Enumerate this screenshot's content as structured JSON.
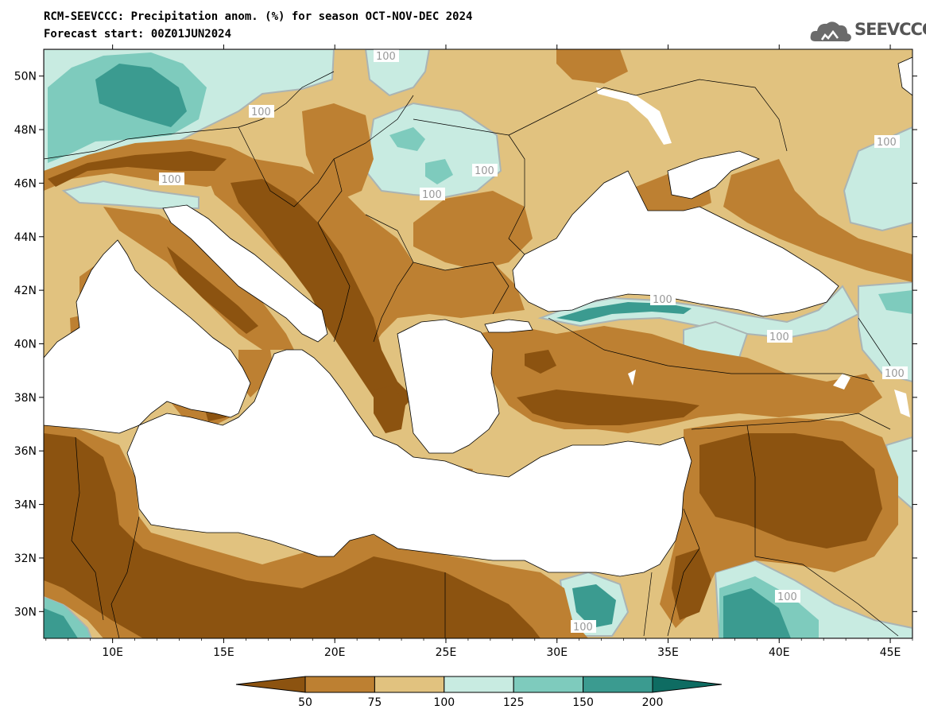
{
  "title": {
    "line1": "RCM-SEEVCCC: Precipitation anom. (%) for season OCT-NOV-DEC 2024",
    "line2": "Forecast start: 00Z01JUN2024"
  },
  "logo": {
    "text": "SEEVCCC",
    "icon": "cloud-icon"
  },
  "map": {
    "lat_labels": [
      "50N",
      "48N",
      "46N",
      "44N",
      "42N",
      "40N",
      "38N",
      "36N",
      "34N",
      "32N",
      "30N"
    ],
    "lon_labels": [
      "10E",
      "15E",
      "20E",
      "25E",
      "30E",
      "35E",
      "40E",
      "45E"
    ],
    "contour_label": "100",
    "lat_range": [
      29,
      51
    ],
    "lon_range": [
      6.9,
      46
    ]
  },
  "colorbar": {
    "levels": [
      "50",
      "75",
      "100",
      "125",
      "150",
      "200"
    ],
    "colors": [
      "#8c5310",
      "#bd8032",
      "#e1c27f",
      "#c8ebe1",
      "#7ecbbd",
      "#3b9b90",
      "#0e6c62"
    ]
  },
  "colors": {
    "sea": "#ffffff",
    "very_dry": "#8c5310",
    "dry": "#bd8032",
    "slightly_dry": "#e1c27f",
    "slightly_wet": "#c8ebe1",
    "wet": "#7ecbbd",
    "very_wet": "#3b9b90"
  }
}
